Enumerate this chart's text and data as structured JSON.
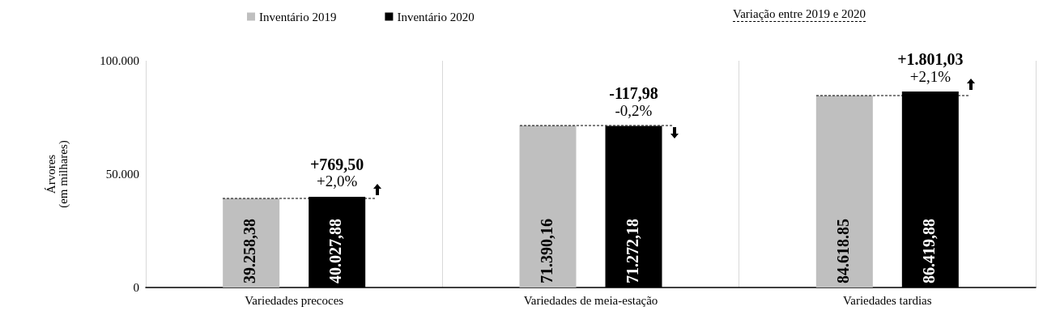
{
  "chart_data": {
    "type": "bar",
    "ylabel": "Árvores\n(em milhares)",
    "categories": [
      "Variedades precoces",
      "Variedades de meia-estação",
      "Variedades tardias"
    ],
    "series": [
      {
        "name": "Inventário 2019",
        "color": "#bfbfbf",
        "values": [
          39258.38,
          71390.16,
          84618.85
        ],
        "value_labels": [
          "39.258,38",
          "71.390,16",
          "84.618.85"
        ]
      },
      {
        "name": "Inventário 2020",
        "color": "#000000",
        "values": [
          40027.88,
          71272.18,
          86419.88
        ],
        "value_labels": [
          "40.027,88",
          "71.272,18",
          "86.419,88"
        ]
      }
    ],
    "annotations": [
      "Variação entre 2019 e 2020",
      "+769,50",
      "+2,0%",
      "-117,98",
      "-0,2%",
      "+1.801,03",
      "+2,1%"
    ],
    "ylim": [
      0,
      100000
    ],
    "yticks": [
      0,
      {
        "value": 50000,
        "label": "50.000"
      },
      {
        "value": 100000,
        "label": "100.000"
      }
    ],
    "grid": "x",
    "legend": "top"
  }
}
